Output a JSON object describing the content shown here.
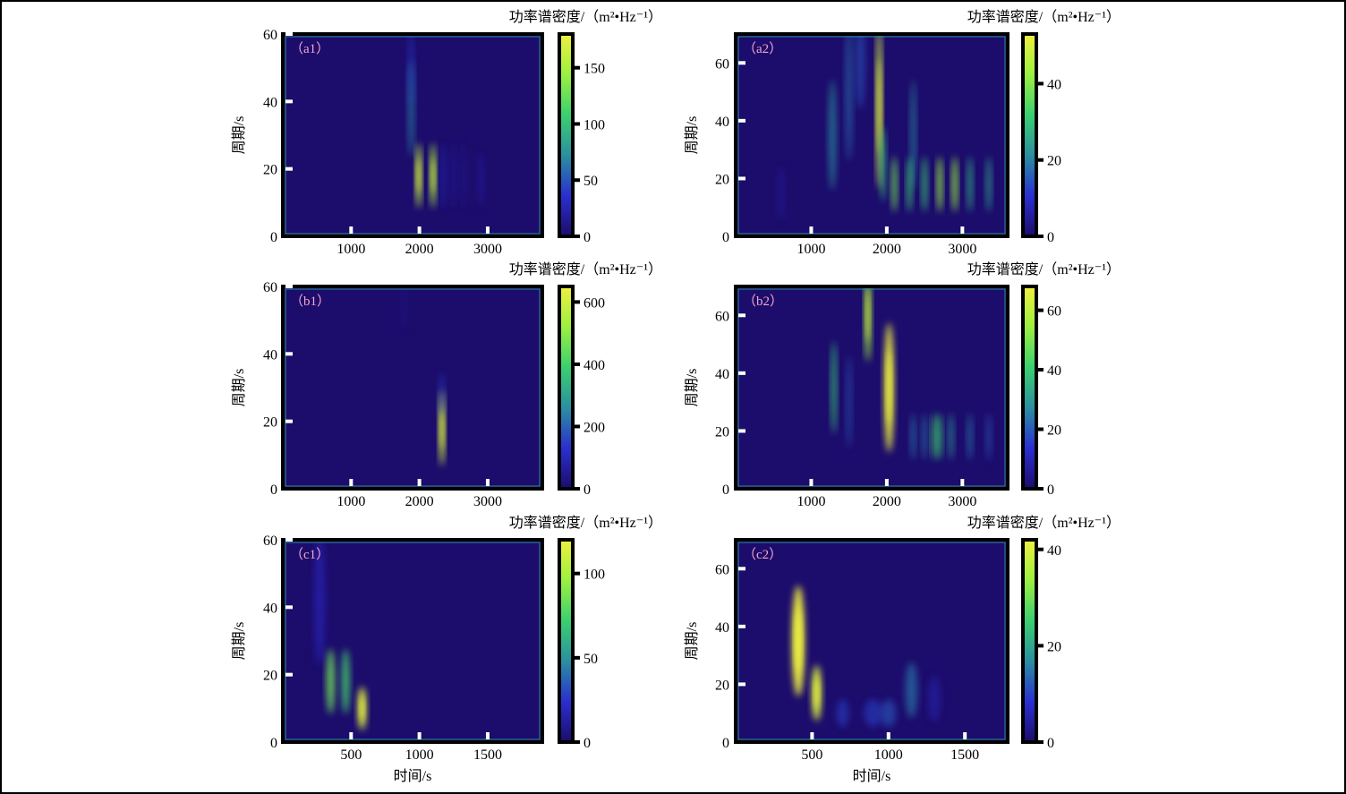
{
  "colors": {
    "background": "#1c0c6c",
    "colormap": [
      "#1c0c6c",
      "#2a2fd0",
      "#2b8fa0",
      "#3ad070",
      "#9cf040",
      "#f0f040"
    ],
    "panel_label": "#f4a8c8",
    "hot": "#e08020"
  },
  "common": {
    "colorbar_title": "功率谱密度/（m²•Hz⁻¹）",
    "ylabel": "周期/s",
    "xlabel": "时间/s"
  },
  "chart_data": [
    {
      "id": "a1",
      "type": "heatmap",
      "label": "（a1）",
      "xlim": [
        0,
        3800
      ],
      "ylim": [
        0,
        60
      ],
      "xticks": [
        1000,
        2000,
        3000
      ],
      "yticks": [
        0,
        20,
        40,
        60
      ],
      "clim": [
        0,
        180
      ],
      "cticks": [
        0,
        50,
        100,
        150
      ],
      "hotspots": [
        [
          1880,
          38,
          70,
          45,
          9
        ],
        [
          1880,
          50,
          40,
          35,
          7
        ],
        [
          1990,
          18,
          160,
          28,
          6
        ],
        [
          2200,
          18,
          150,
          28,
          6
        ],
        [
          2350,
          18,
          30,
          22,
          6
        ],
        [
          2500,
          18,
          20,
          22,
          6
        ],
        [
          2650,
          18,
          15,
          22,
          6
        ],
        [
          2900,
          17,
          25,
          25,
          5
        ]
      ]
    },
    {
      "id": "a2",
      "type": "heatmap",
      "label": "（a2）",
      "xlim": [
        0,
        3600
      ],
      "ylim": [
        0,
        70
      ],
      "xticks": [
        1000,
        2000,
        3000
      ],
      "yticks": [
        0,
        20,
        40,
        60
      ],
      "clim": [
        0,
        53
      ],
      "cticks": [
        0,
        20,
        40
      ],
      "hotspots": [
        [
          1280,
          35,
          22,
          50,
          12
        ],
        [
          1500,
          50,
          18,
          45,
          15
        ],
        [
          1650,
          60,
          15,
          60,
          10
        ],
        [
          1900,
          45,
          50,
          30,
          18
        ],
        [
          1950,
          25,
          30,
          30,
          8
        ],
        [
          2100,
          18,
          38,
          30,
          6
        ],
        [
          2350,
          35,
          22,
          30,
          12
        ],
        [
          2300,
          18,
          32,
          30,
          6
        ],
        [
          2500,
          18,
          32,
          30,
          6
        ],
        [
          2700,
          18,
          42,
          30,
          6
        ],
        [
          2900,
          18,
          42,
          30,
          6
        ],
        [
          3100,
          18,
          28,
          30,
          6
        ],
        [
          3350,
          18,
          26,
          30,
          6
        ],
        [
          600,
          15,
          6,
          40,
          6
        ]
      ]
    },
    {
      "id": "b1",
      "type": "heatmap",
      "label": "（b1）",
      "xlim": [
        0,
        3800
      ],
      "ylim": [
        0,
        60
      ],
      "xticks": [
        1000,
        2000,
        3000
      ],
      "yticks": [
        0,
        20,
        40,
        60
      ],
      "clim": [
        0,
        650
      ],
      "cticks": [
        0,
        200,
        400,
        600
      ],
      "hotspots": [
        [
          2330,
          18,
          600,
          20,
          7
        ],
        [
          2330,
          28,
          150,
          15,
          4
        ],
        [
          1780,
          55,
          40,
          30,
          5
        ]
      ]
    },
    {
      "id": "b2",
      "type": "heatmap",
      "label": "（b2）",
      "xlim": [
        0,
        3600
      ],
      "ylim": [
        0,
        70
      ],
      "xticks": [
        1000,
        2000,
        3000
      ],
      "yticks": [
        0,
        20,
        40,
        60
      ],
      "clim": [
        0,
        68
      ],
      "cticks": [
        0,
        20,
        40,
        60
      ],
      "hotspots": [
        [
          1300,
          35,
          40,
          30,
          10
        ],
        [
          1500,
          30,
          20,
          30,
          10
        ],
        [
          1750,
          60,
          55,
          40,
          10
        ],
        [
          2030,
          35,
          68,
          60,
          14
        ],
        [
          2350,
          18,
          25,
          30,
          5
        ],
        [
          2500,
          18,
          25,
          30,
          5
        ],
        [
          2630,
          18,
          42,
          25,
          5
        ],
        [
          2700,
          18,
          40,
          25,
          5
        ],
        [
          2850,
          18,
          30,
          30,
          5
        ],
        [
          3100,
          18,
          25,
          30,
          5
        ],
        [
          3350,
          18,
          20,
          30,
          5
        ]
      ]
    },
    {
      "id": "c1",
      "type": "heatmap",
      "label": "（c1）",
      "xlim": [
        0,
        1900
      ],
      "ylim": [
        0,
        60
      ],
      "xticks": [
        500,
        1000,
        1500
      ],
      "yticks": [
        0,
        20,
        40,
        60
      ],
      "clim": [
        0,
        120
      ],
      "cticks": [
        0,
        50,
        100
      ],
      "hotspots": [
        [
          270,
          42,
          22,
          40,
          12
        ],
        [
          350,
          18,
          85,
          30,
          6
        ],
        [
          460,
          18,
          75,
          30,
          6
        ],
        [
          580,
          10,
          115,
          30,
          4
        ]
      ]
    },
    {
      "id": "c2",
      "type": "heatmap",
      "label": "（c2）",
      "xlim": [
        0,
        1780
      ],
      "ylim": [
        0,
        70
      ],
      "xticks": [
        500,
        1000,
        1500
      ],
      "yticks": [
        0,
        20,
        40,
        60
      ],
      "clim": [
        0,
        42
      ],
      "cticks": [
        0,
        20,
        40
      ],
      "hotspots": [
        [
          410,
          35,
          42,
          40,
          12
        ],
        [
          530,
          17,
          40,
          30,
          6
        ],
        [
          700,
          10,
          10,
          40,
          3
        ],
        [
          900,
          10,
          10,
          60,
          3
        ],
        [
          1150,
          18,
          15,
          40,
          6
        ],
        [
          1000,
          10,
          12,
          50,
          3
        ],
        [
          1300,
          15,
          6,
          40,
          5
        ]
      ]
    }
  ]
}
